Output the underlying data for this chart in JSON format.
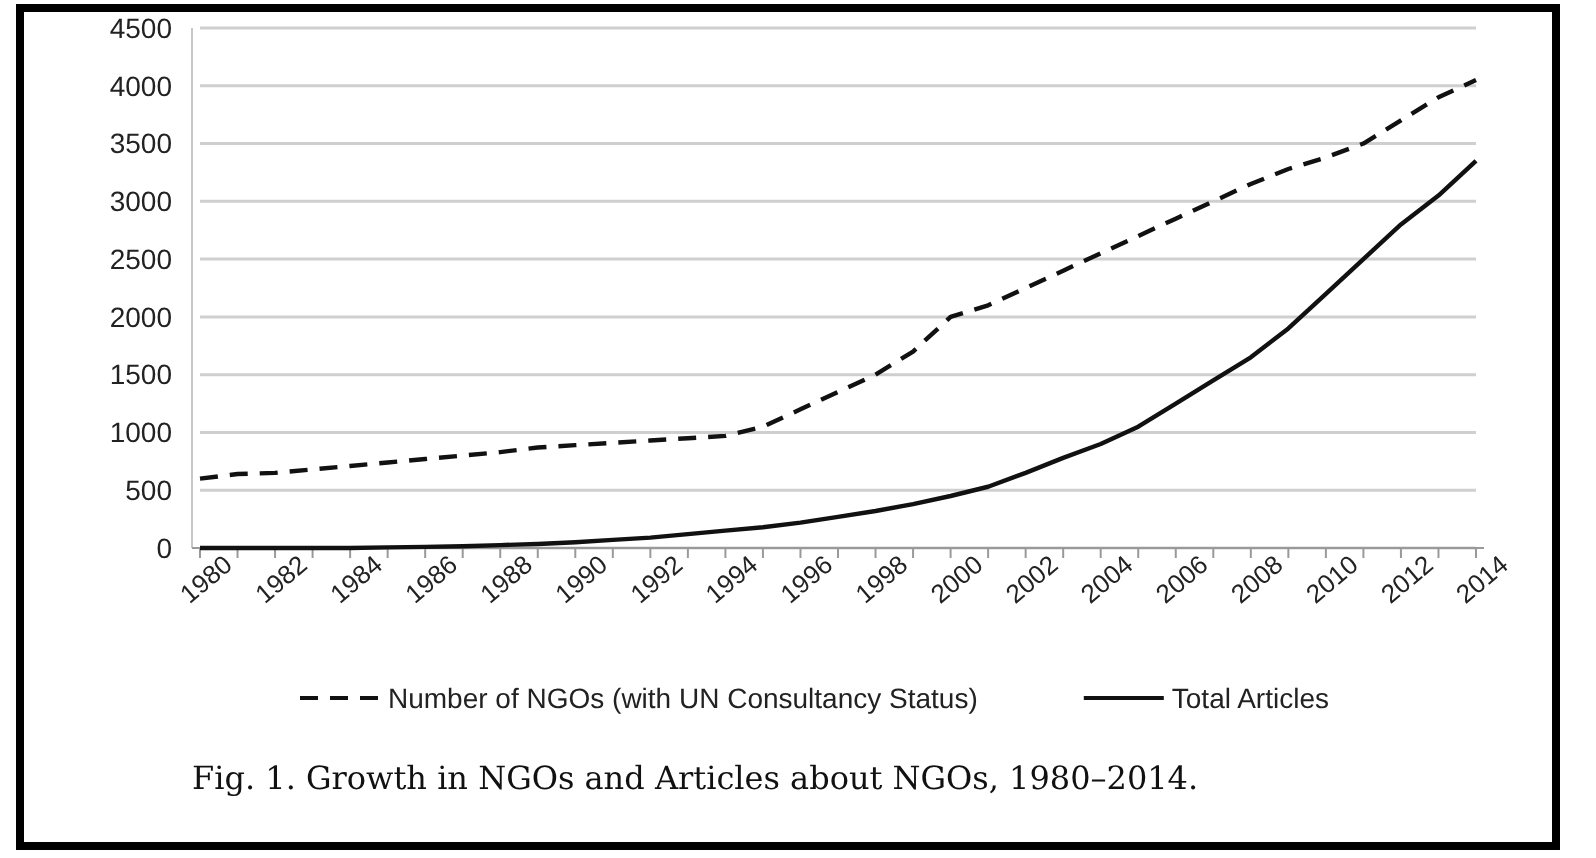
{
  "chart_data": {
    "type": "line",
    "x": [
      1980,
      1981,
      1982,
      1983,
      1984,
      1985,
      1986,
      1987,
      1988,
      1989,
      1990,
      1991,
      1992,
      1993,
      1994,
      1995,
      1996,
      1997,
      1998,
      1999,
      2000,
      2001,
      2002,
      2003,
      2004,
      2005,
      2006,
      2007,
      2008,
      2009,
      2010,
      2011,
      2012,
      2013,
      2014
    ],
    "series": [
      {
        "name": "Number of NGOs (with UN Consultancy Status)",
        "color": "#111111",
        "line_style": "dashed",
        "values": [
          600,
          640,
          650,
          680,
          710,
          740,
          770,
          800,
          830,
          870,
          890,
          910,
          930,
          950,
          970,
          1050,
          1200,
          1350,
          1500,
          1700,
          2000,
          2100,
          2250,
          2400,
          2550,
          2700,
          2850,
          3000,
          3150,
          3280,
          3380,
          3500,
          3700,
          3900,
          4050
        ]
      },
      {
        "name": "Total Articles",
        "color": "#111111",
        "line_style": "solid",
        "values": [
          0,
          0,
          0,
          0,
          0,
          5,
          10,
          15,
          25,
          35,
          50,
          70,
          90,
          120,
          150,
          180,
          220,
          270,
          320,
          380,
          450,
          530,
          650,
          780,
          900,
          1050,
          1250,
          1450,
          1650,
          1900,
          2200,
          2500,
          2800,
          3050,
          3350
        ]
      }
    ],
    "xlim": [
      1980,
      2014
    ],
    "xticks": [
      1980,
      1982,
      1984,
      1986,
      1988,
      1990,
      1992,
      1994,
      1996,
      1998,
      2000,
      2002,
      2004,
      2006,
      2008,
      2010,
      2012,
      2014
    ],
    "ylim": [
      0,
      4500
    ],
    "yticks": [
      0,
      500,
      1000,
      1500,
      2000,
      2500,
      3000,
      3500,
      4000,
      4500
    ],
    "grid": "y",
    "legend": "bottom",
    "annotations": [
      "Fig. 1. Growth in NGOs and Articles about NGOs, 1980–2014."
    ]
  }
}
